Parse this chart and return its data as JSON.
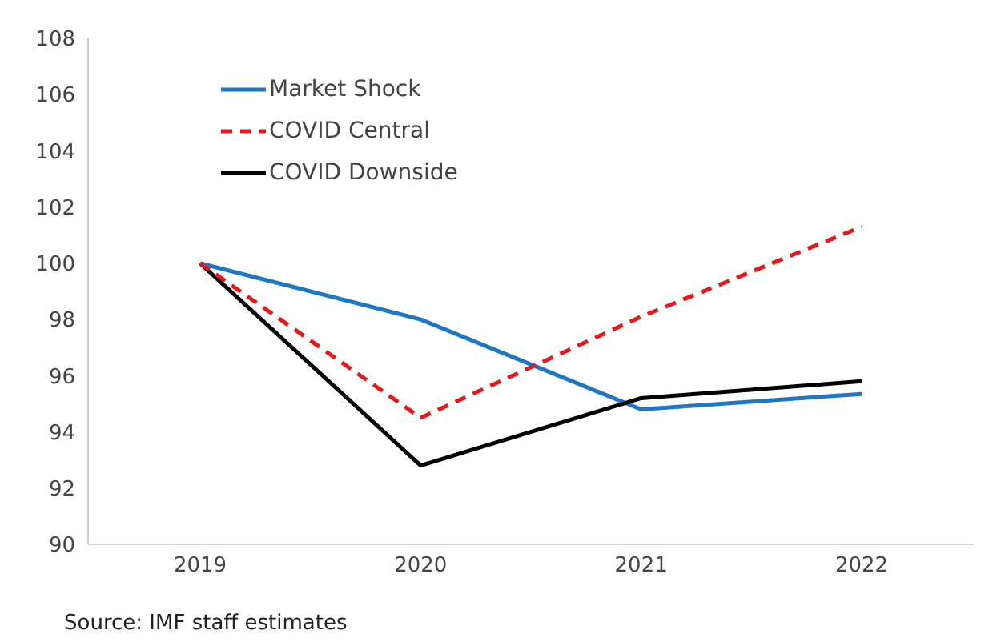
{
  "chart_data": {
    "type": "line",
    "categories": [
      "2019",
      "2020",
      "2021",
      "2022"
    ],
    "series": [
      {
        "name": "Market Shock",
        "color": "#1f77c4",
        "line_style": "solid",
        "values": [
          100,
          98.0,
          94.8,
          95.35
        ]
      },
      {
        "name": "COVID Central",
        "color": "#e31a1c",
        "line_style": "dashed",
        "values": [
          100,
          94.5,
          98.1,
          101.3
        ]
      },
      {
        "name": "COVID Downside",
        "color": "#000000",
        "line_style": "solid",
        "values": [
          100,
          92.8,
          95.2,
          95.8
        ]
      }
    ],
    "ylim": [
      90,
      108
    ],
    "yticks": [
      90,
      92,
      94,
      96,
      98,
      100,
      102,
      104,
      106,
      108
    ],
    "grid": false,
    "legend": "top left",
    "marker": "none",
    "annotations": [
      "Source: IMF staff estimates"
    ]
  }
}
